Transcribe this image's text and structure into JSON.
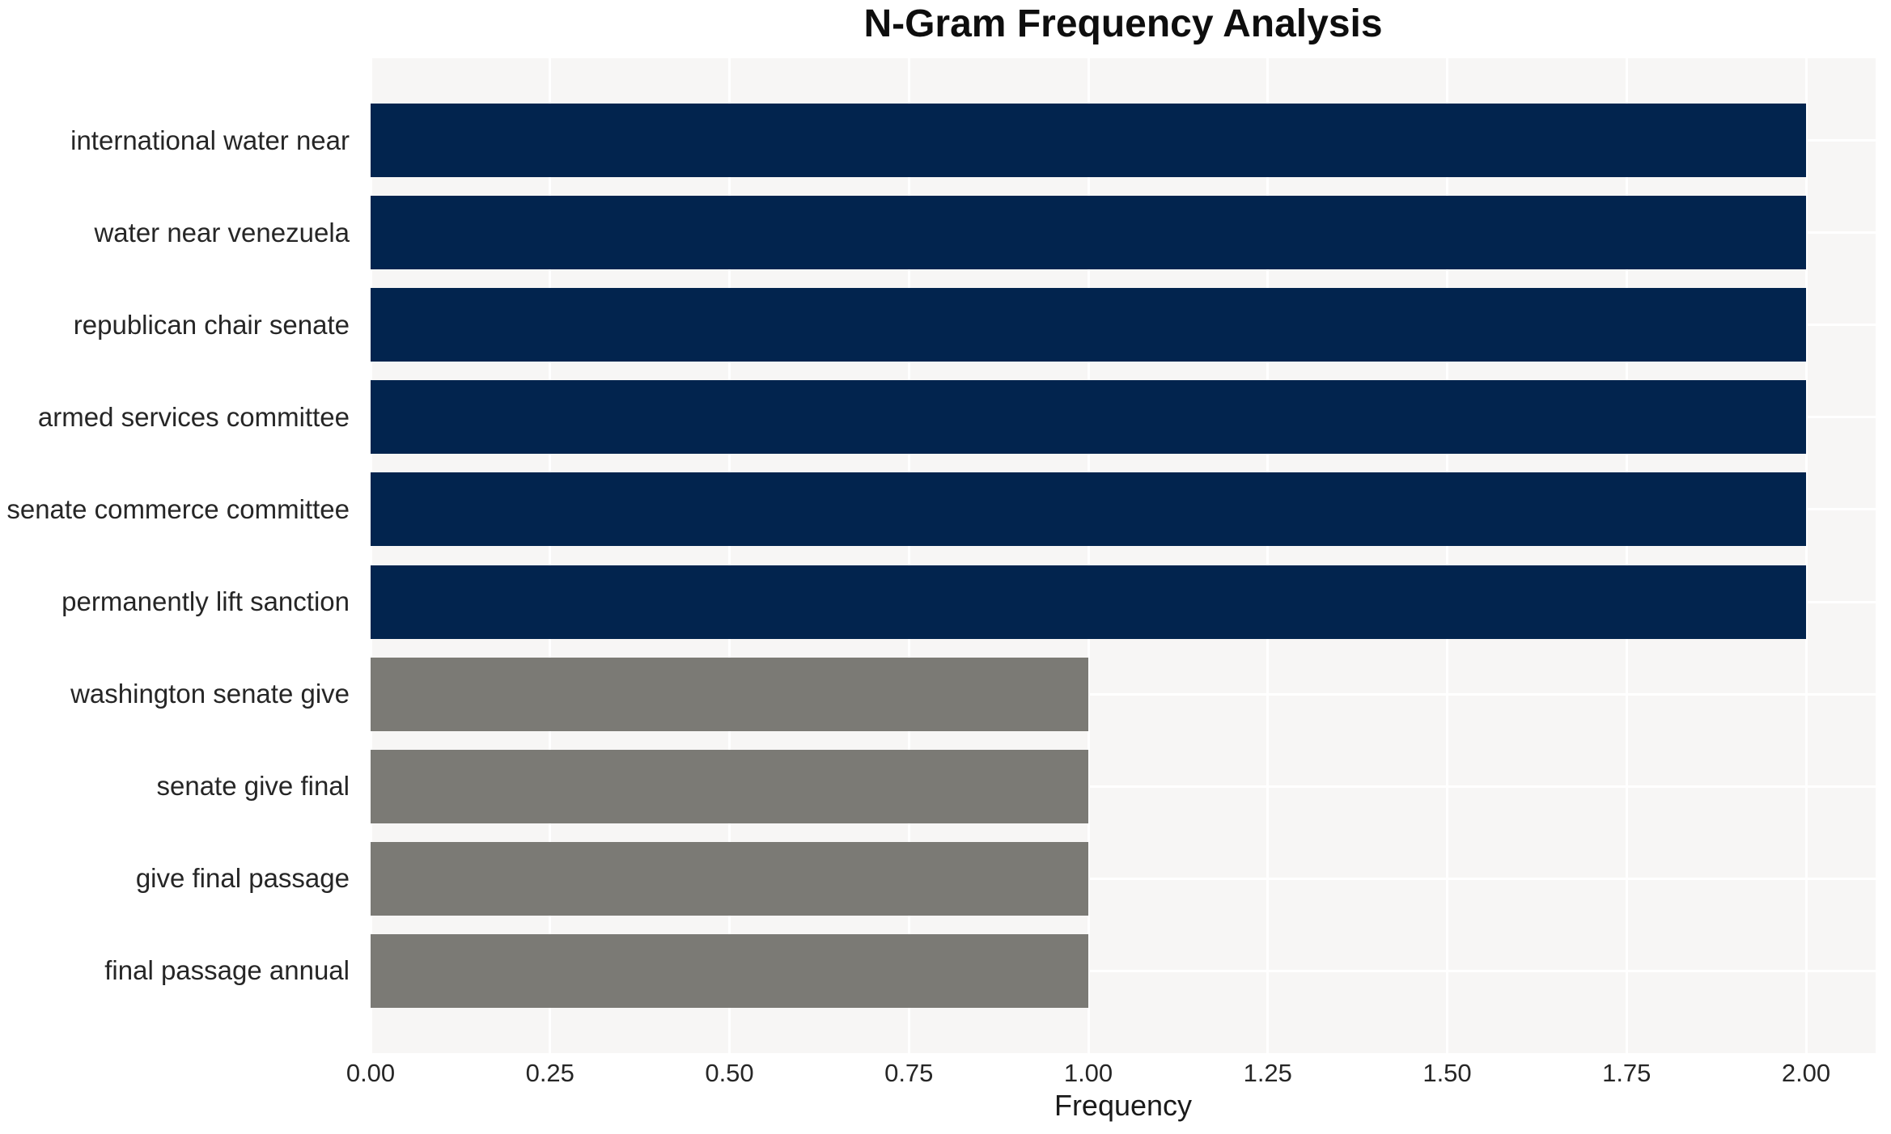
{
  "title": "N-Gram Frequency Analysis",
  "chart_data": {
    "type": "bar",
    "orientation": "horizontal",
    "title": "N-Gram Frequency Analysis",
    "xlabel": "Frequency",
    "ylabel": "",
    "categories": [
      "international water near",
      "water near venezuela",
      "republican chair senate",
      "armed services committee",
      "senate commerce committee",
      "permanently lift sanction",
      "washington senate give",
      "senate give final",
      "give final passage",
      "final passage annual"
    ],
    "values": [
      2,
      2,
      2,
      2,
      2,
      2,
      1,
      1,
      1,
      1
    ],
    "bar_colors": [
      "#02244e",
      "#02244e",
      "#02244e",
      "#02244e",
      "#02244e",
      "#02244e",
      "#7b7a75",
      "#7b7a75",
      "#7b7a75",
      "#7b7a75"
    ],
    "xlim": [
      0.0,
      2.1
    ],
    "xticks": [
      0.0,
      0.25,
      0.5,
      0.75,
      1.0,
      1.25,
      1.5,
      1.75,
      2.0
    ],
    "xtick_labels": [
      "0.00",
      "0.25",
      "0.50",
      "0.75",
      "1.00",
      "1.25",
      "1.50",
      "1.75",
      "2.00"
    ],
    "grid": true,
    "legend": false,
    "plot_background": "#f7f6f5",
    "gridline_color": "#ffffff",
    "accent_color_high": "#02244e",
    "accent_color_low": "#7b7a75",
    "text_color": "#262626"
  }
}
